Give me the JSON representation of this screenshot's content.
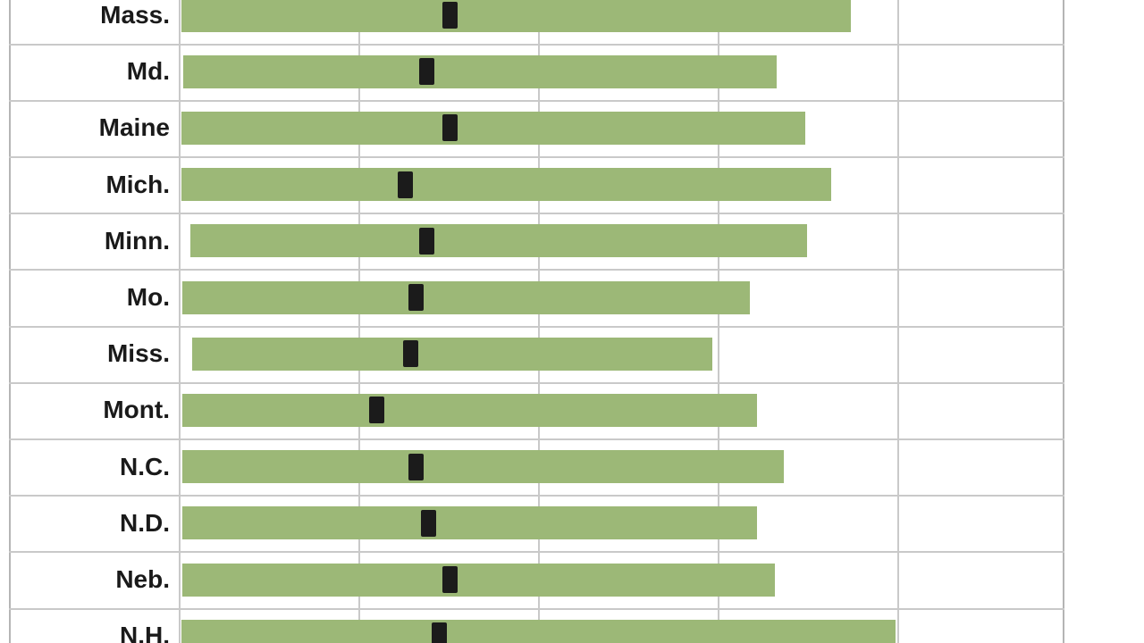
{
  "chart_data": {
    "type": "range-bar",
    "orientation": "horizontal",
    "description": "Horizontal range bars per state (light green) with a black marker indicating a point value inside each range; axis tick labels are cropped out of view, values expressed in gridline units (one unit per vertical gridline).",
    "axis": {
      "min": 0,
      "max": 5.2,
      "gridlines": [
        0,
        1,
        2,
        3,
        4
      ],
      "tick_labels_visible": false
    },
    "rows": [
      {
        "label": "Mass.",
        "bar_start": 0.015,
        "bar_end": 3.74,
        "marker": 1.51
      },
      {
        "label": "Md.",
        "bar_start": 0.025,
        "bar_end": 3.33,
        "marker": 1.38
      },
      {
        "label": "Maine",
        "bar_start": 0.015,
        "bar_end": 3.49,
        "marker": 1.51
      },
      {
        "label": "Mich.",
        "bar_start": 0.015,
        "bar_end": 3.63,
        "marker": 1.26
      },
      {
        "label": "Minn.",
        "bar_start": 0.065,
        "bar_end": 3.5,
        "marker": 1.38
      },
      {
        "label": "Mo.",
        "bar_start": 0.02,
        "bar_end": 3.18,
        "marker": 1.32
      },
      {
        "label": "Miss.",
        "bar_start": 0.075,
        "bar_end": 2.97,
        "marker": 1.29
      },
      {
        "label": "Mont.",
        "bar_start": 0.02,
        "bar_end": 3.22,
        "marker": 1.1
      },
      {
        "label": "N.C.",
        "bar_start": 0.02,
        "bar_end": 3.37,
        "marker": 1.32
      },
      {
        "label": "N.D.",
        "bar_start": 0.02,
        "bar_end": 3.22,
        "marker": 1.39
      },
      {
        "label": "Neb.",
        "bar_start": 0.02,
        "bar_end": 3.32,
        "marker": 1.51
      },
      {
        "label": "N.H.",
        "bar_start": 0.015,
        "bar_end": 3.99,
        "marker": 1.45
      }
    ],
    "colors": {
      "bar": "#9cb877",
      "marker": "#1b1b1b",
      "gridline": "#c9c9c9",
      "border": "#b5b5b5",
      "label_text": "#1a1a1a",
      "background": "#ffffff"
    }
  }
}
